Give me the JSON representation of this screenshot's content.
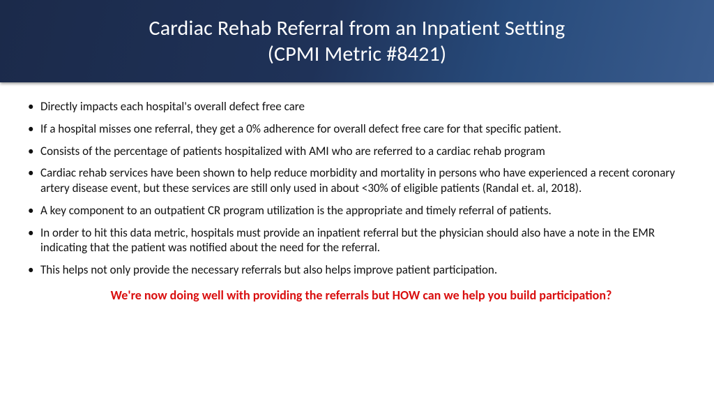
{
  "colors": {
    "header_gradient_start": "#1b2a4a",
    "header_gradient_mid": "#274a7a",
    "header_gradient_end": "#3a5c8e",
    "header_text": "#ffffff",
    "body_text": "#111111",
    "callout_text": "#d90e0e",
    "body_background": "#ffffff"
  },
  "typography": {
    "title_fontsize_pt": 24,
    "title_weight": 300,
    "bullet_fontsize_pt": 13,
    "callout_fontsize_pt": 14,
    "callout_weight": 700,
    "font_family": "Segoe UI / Calibri"
  },
  "header": {
    "title_line1": "Cardiac Rehab Referral from an Inpatient Setting",
    "title_line2": "(CPMI Metric #8421)"
  },
  "bullets": [
    "Directly impacts each hospital's overall defect free care",
    "If a hospital misses one referral, they get a 0% adherence for overall defect free care for that specific patient.",
    "Consists of the percentage of patients hospitalized with AMI who are referred to a cardiac rehab program",
    "Cardiac rehab services have been shown to help reduce morbidity and mortality in persons who have experienced a recent coronary artery disease event, but these services are still only used in about <30% of eligible patients (Randal et. al, 2018).",
    "A key component to an outpatient CR program utilization is the appropriate and timely referral of patients.",
    "In order to hit this data metric, hospitals must provide an inpatient referral but the physician should also have a note in the EMR indicating that the patient was notified about the need for the referral.",
    "This helps not only provide the necessary referrals but also helps improve patient participation."
  ],
  "callout": "We're now doing well with providing the referrals but HOW can we help you build participation?"
}
